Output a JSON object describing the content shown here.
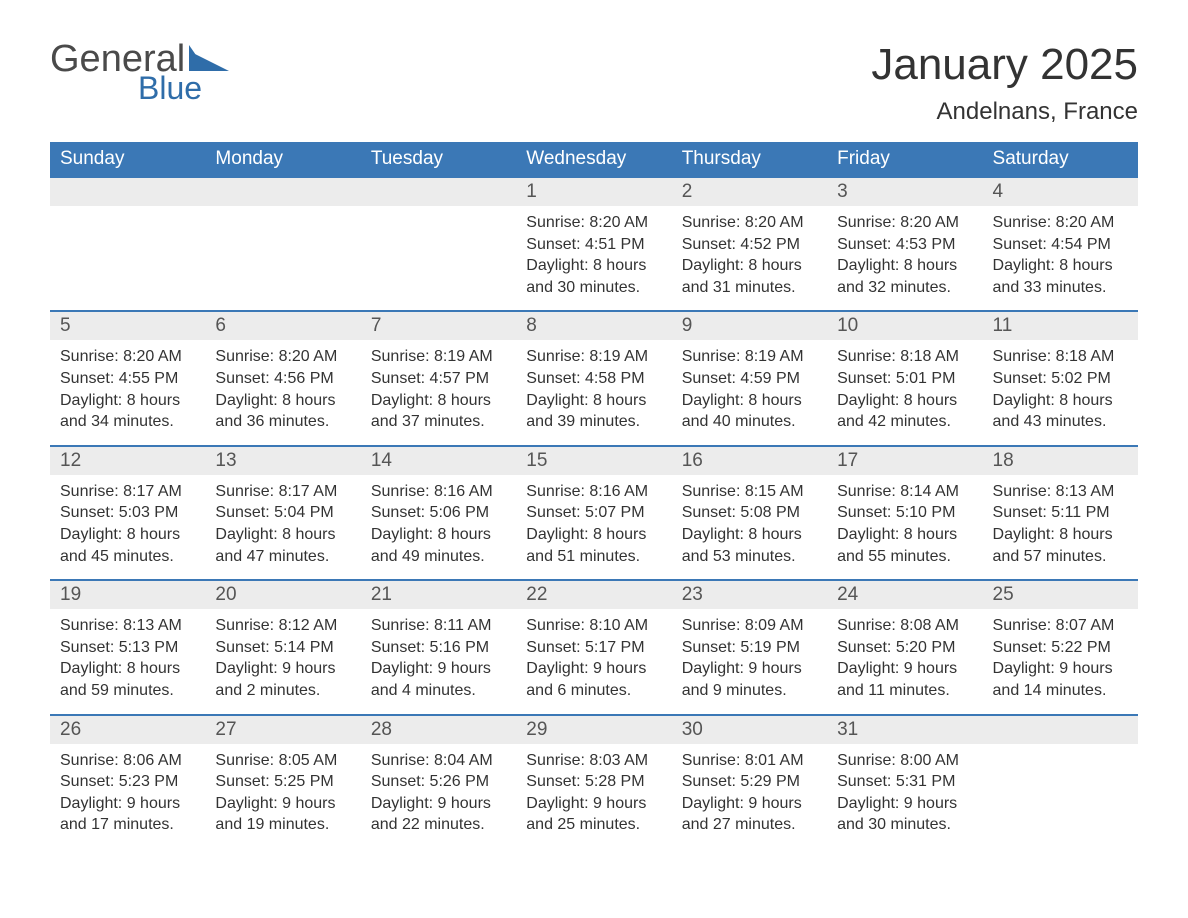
{
  "brand": {
    "word1": "General",
    "word2": "Blue",
    "flag_color": "#2f6da9",
    "word1_color": "#4a4a4a"
  },
  "title": "January 2025",
  "location": "Andelnans, France",
  "title_fontsize": 44,
  "location_fontsize": 24,
  "header_bg": "#3b78b6",
  "header_text_color": "#ffffff",
  "daynum_bg": "#ececec",
  "border_color": "#3b78b6",
  "body_text_color": "#333333",
  "page_bg": "#ffffff",
  "days_of_week": [
    "Sunday",
    "Monday",
    "Tuesday",
    "Wednesday",
    "Thursday",
    "Friday",
    "Saturday"
  ],
  "weeks": [
    [
      null,
      null,
      null,
      {
        "n": "1",
        "sunrise": "Sunrise: 8:20 AM",
        "sunset": "Sunset: 4:51 PM",
        "dl1": "Daylight: 8 hours",
        "dl2": "and 30 minutes."
      },
      {
        "n": "2",
        "sunrise": "Sunrise: 8:20 AM",
        "sunset": "Sunset: 4:52 PM",
        "dl1": "Daylight: 8 hours",
        "dl2": "and 31 minutes."
      },
      {
        "n": "3",
        "sunrise": "Sunrise: 8:20 AM",
        "sunset": "Sunset: 4:53 PM",
        "dl1": "Daylight: 8 hours",
        "dl2": "and 32 minutes."
      },
      {
        "n": "4",
        "sunrise": "Sunrise: 8:20 AM",
        "sunset": "Sunset: 4:54 PM",
        "dl1": "Daylight: 8 hours",
        "dl2": "and 33 minutes."
      }
    ],
    [
      {
        "n": "5",
        "sunrise": "Sunrise: 8:20 AM",
        "sunset": "Sunset: 4:55 PM",
        "dl1": "Daylight: 8 hours",
        "dl2": "and 34 minutes."
      },
      {
        "n": "6",
        "sunrise": "Sunrise: 8:20 AM",
        "sunset": "Sunset: 4:56 PM",
        "dl1": "Daylight: 8 hours",
        "dl2": "and 36 minutes."
      },
      {
        "n": "7",
        "sunrise": "Sunrise: 8:19 AM",
        "sunset": "Sunset: 4:57 PM",
        "dl1": "Daylight: 8 hours",
        "dl2": "and 37 minutes."
      },
      {
        "n": "8",
        "sunrise": "Sunrise: 8:19 AM",
        "sunset": "Sunset: 4:58 PM",
        "dl1": "Daylight: 8 hours",
        "dl2": "and 39 minutes."
      },
      {
        "n": "9",
        "sunrise": "Sunrise: 8:19 AM",
        "sunset": "Sunset: 4:59 PM",
        "dl1": "Daylight: 8 hours",
        "dl2": "and 40 minutes."
      },
      {
        "n": "10",
        "sunrise": "Sunrise: 8:18 AM",
        "sunset": "Sunset: 5:01 PM",
        "dl1": "Daylight: 8 hours",
        "dl2": "and 42 minutes."
      },
      {
        "n": "11",
        "sunrise": "Sunrise: 8:18 AM",
        "sunset": "Sunset: 5:02 PM",
        "dl1": "Daylight: 8 hours",
        "dl2": "and 43 minutes."
      }
    ],
    [
      {
        "n": "12",
        "sunrise": "Sunrise: 8:17 AM",
        "sunset": "Sunset: 5:03 PM",
        "dl1": "Daylight: 8 hours",
        "dl2": "and 45 minutes."
      },
      {
        "n": "13",
        "sunrise": "Sunrise: 8:17 AM",
        "sunset": "Sunset: 5:04 PM",
        "dl1": "Daylight: 8 hours",
        "dl2": "and 47 minutes."
      },
      {
        "n": "14",
        "sunrise": "Sunrise: 8:16 AM",
        "sunset": "Sunset: 5:06 PM",
        "dl1": "Daylight: 8 hours",
        "dl2": "and 49 minutes."
      },
      {
        "n": "15",
        "sunrise": "Sunrise: 8:16 AM",
        "sunset": "Sunset: 5:07 PM",
        "dl1": "Daylight: 8 hours",
        "dl2": "and 51 minutes."
      },
      {
        "n": "16",
        "sunrise": "Sunrise: 8:15 AM",
        "sunset": "Sunset: 5:08 PM",
        "dl1": "Daylight: 8 hours",
        "dl2": "and 53 minutes."
      },
      {
        "n": "17",
        "sunrise": "Sunrise: 8:14 AM",
        "sunset": "Sunset: 5:10 PM",
        "dl1": "Daylight: 8 hours",
        "dl2": "and 55 minutes."
      },
      {
        "n": "18",
        "sunrise": "Sunrise: 8:13 AM",
        "sunset": "Sunset: 5:11 PM",
        "dl1": "Daylight: 8 hours",
        "dl2": "and 57 minutes."
      }
    ],
    [
      {
        "n": "19",
        "sunrise": "Sunrise: 8:13 AM",
        "sunset": "Sunset: 5:13 PM",
        "dl1": "Daylight: 8 hours",
        "dl2": "and 59 minutes."
      },
      {
        "n": "20",
        "sunrise": "Sunrise: 8:12 AM",
        "sunset": "Sunset: 5:14 PM",
        "dl1": "Daylight: 9 hours",
        "dl2": "and 2 minutes."
      },
      {
        "n": "21",
        "sunrise": "Sunrise: 8:11 AM",
        "sunset": "Sunset: 5:16 PM",
        "dl1": "Daylight: 9 hours",
        "dl2": "and 4 minutes."
      },
      {
        "n": "22",
        "sunrise": "Sunrise: 8:10 AM",
        "sunset": "Sunset: 5:17 PM",
        "dl1": "Daylight: 9 hours",
        "dl2": "and 6 minutes."
      },
      {
        "n": "23",
        "sunrise": "Sunrise: 8:09 AM",
        "sunset": "Sunset: 5:19 PM",
        "dl1": "Daylight: 9 hours",
        "dl2": "and 9 minutes."
      },
      {
        "n": "24",
        "sunrise": "Sunrise: 8:08 AM",
        "sunset": "Sunset: 5:20 PM",
        "dl1": "Daylight: 9 hours",
        "dl2": "and 11 minutes."
      },
      {
        "n": "25",
        "sunrise": "Sunrise: 8:07 AM",
        "sunset": "Sunset: 5:22 PM",
        "dl1": "Daylight: 9 hours",
        "dl2": "and 14 minutes."
      }
    ],
    [
      {
        "n": "26",
        "sunrise": "Sunrise: 8:06 AM",
        "sunset": "Sunset: 5:23 PM",
        "dl1": "Daylight: 9 hours",
        "dl2": "and 17 minutes."
      },
      {
        "n": "27",
        "sunrise": "Sunrise: 8:05 AM",
        "sunset": "Sunset: 5:25 PM",
        "dl1": "Daylight: 9 hours",
        "dl2": "and 19 minutes."
      },
      {
        "n": "28",
        "sunrise": "Sunrise: 8:04 AM",
        "sunset": "Sunset: 5:26 PM",
        "dl1": "Daylight: 9 hours",
        "dl2": "and 22 minutes."
      },
      {
        "n": "29",
        "sunrise": "Sunrise: 8:03 AM",
        "sunset": "Sunset: 5:28 PM",
        "dl1": "Daylight: 9 hours",
        "dl2": "and 25 minutes."
      },
      {
        "n": "30",
        "sunrise": "Sunrise: 8:01 AM",
        "sunset": "Sunset: 5:29 PM",
        "dl1": "Daylight: 9 hours",
        "dl2": "and 27 minutes."
      },
      {
        "n": "31",
        "sunrise": "Sunrise: 8:00 AM",
        "sunset": "Sunset: 5:31 PM",
        "dl1": "Daylight: 9 hours",
        "dl2": "and 30 minutes."
      },
      null
    ]
  ]
}
